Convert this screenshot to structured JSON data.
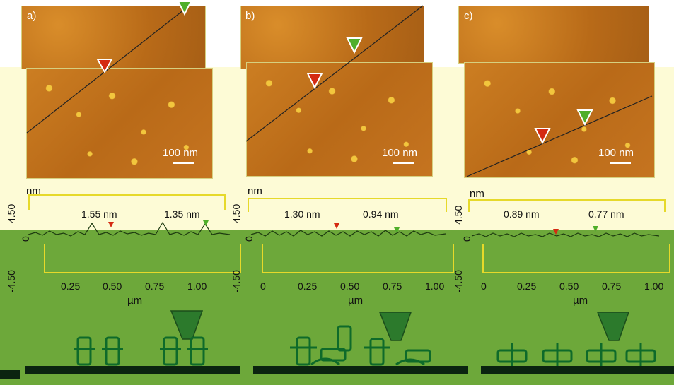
{
  "panels": [
    {
      "label": "a)",
      "scale_bar": "100 nm",
      "y_unit": "nm",
      "y_top": "4.50",
      "y_mid": "0",
      "y_bottom": "-4.50",
      "heights": [
        "1.55 nm",
        "1.35 nm"
      ],
      "x_ticks": [
        "0.25",
        "0.50",
        "0.75",
        "1.00"
      ],
      "x_unit": "µm"
    },
    {
      "label": "b)",
      "scale_bar": "100 nm",
      "y_unit": "nm",
      "y_top": "4.50",
      "y_mid": "0",
      "y_bottom": "-4.50",
      "heights": [
        "1.30 nm",
        "0.94 nm"
      ],
      "x_ticks": [
        "0",
        "0.25",
        "0.50",
        "0.75",
        "1.00"
      ],
      "x_unit": "µm"
    },
    {
      "label": "c)",
      "scale_bar": "100 nm",
      "y_unit": "nm",
      "y_top": "4.50",
      "y_mid": "0",
      "y_bottom": "-4.50",
      "heights": [
        "0.89 nm",
        "0.77 nm"
      ],
      "x_ticks": [
        "0",
        "0.25",
        "0.50",
        "0.75",
        "1.00"
      ],
      "x_unit": "µm"
    }
  ],
  "colors": {
    "marker_red": "#d42a12",
    "marker_green": "#4fae2a",
    "molecule_green": "#0e6a2a",
    "substrate": "#0b2410",
    "tip_green": "#2c7a2c"
  }
}
